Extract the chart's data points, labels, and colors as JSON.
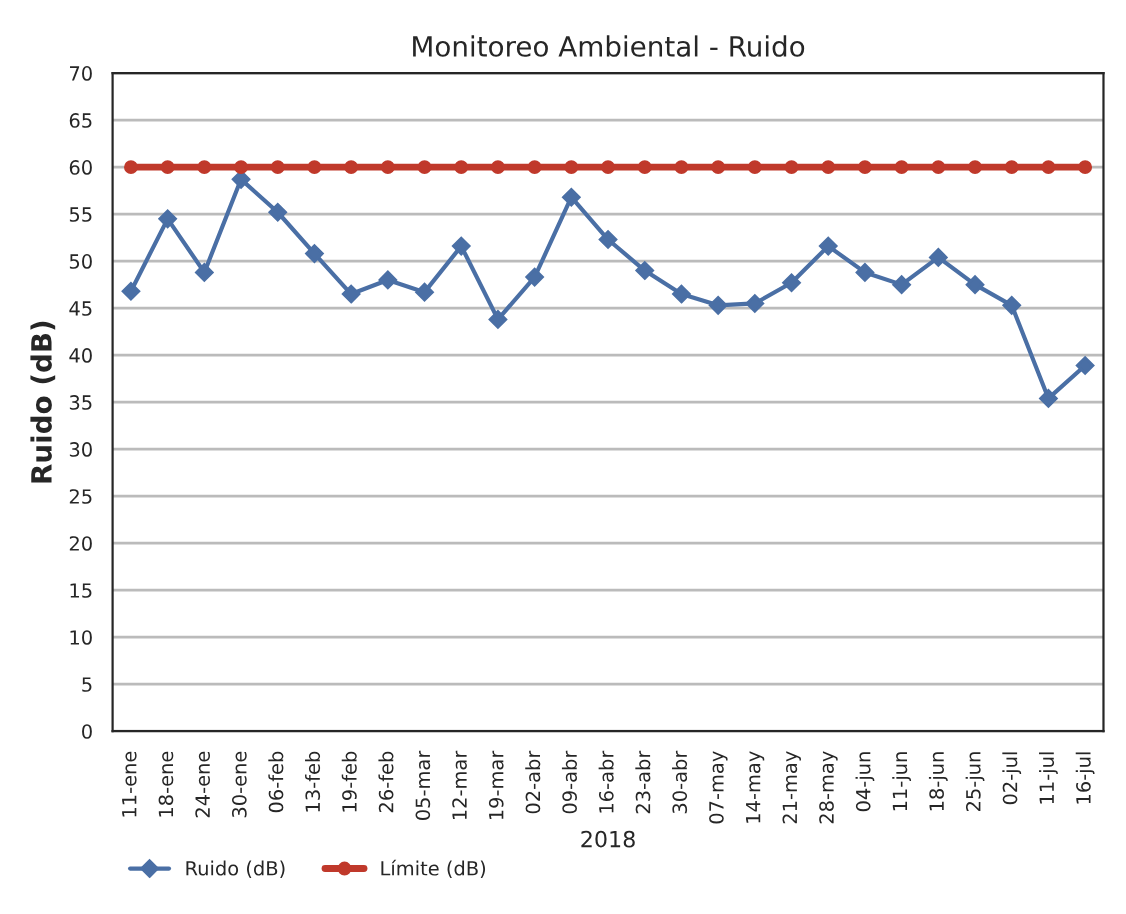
{
  "chart_data": {
    "type": "line",
    "title": "Monitoreo Ambiental - Ruido",
    "xlabel": "2018",
    "ylabel": "Ruido (dB)",
    "categories": [
      "11-ene",
      "18-ene",
      "24-ene",
      "30-ene",
      "06-feb",
      "13-feb",
      "19-feb",
      "26-feb",
      "05-mar",
      "12-mar",
      "19-mar",
      "02-abr",
      "09-abr",
      "16-abr",
      "23-abr",
      "30-abr",
      "07-may",
      "14-may",
      "21-may",
      "28-may",
      "04-jun",
      "11-jun",
      "18-jun",
      "25-jun",
      "02-jul",
      "11-jul",
      "16-jul"
    ],
    "series": [
      {
        "name": "Ruido (dB)",
        "color": "#4a6fa5",
        "marker": "diamond",
        "values": [
          46.8,
          54.5,
          48.8,
          58.7,
          55.2,
          50.8,
          46.5,
          48,
          46.7,
          51.6,
          43.8,
          48.3,
          56.8,
          52.3,
          49,
          46.5,
          45.3,
          45.5,
          47.7,
          51.6,
          48.8,
          47.5,
          50.4,
          47.5,
          45.3,
          35.4,
          38.9
        ]
      },
      {
        "name": "Límite (dB)",
        "color": "#c0392b",
        "marker": "circle",
        "values": [
          60,
          60,
          60,
          60,
          60,
          60,
          60,
          60,
          60,
          60,
          60,
          60,
          60,
          60,
          60,
          60,
          60,
          60,
          60,
          60,
          60,
          60,
          60,
          60,
          60,
          60,
          60
        ]
      }
    ],
    "ylim": [
      0,
      70
    ],
    "yticks": [
      0,
      5,
      10,
      15,
      20,
      25,
      30,
      35,
      40,
      45,
      50,
      55,
      60,
      65,
      70
    ],
    "grid": "y",
    "legend": "bottom left"
  }
}
